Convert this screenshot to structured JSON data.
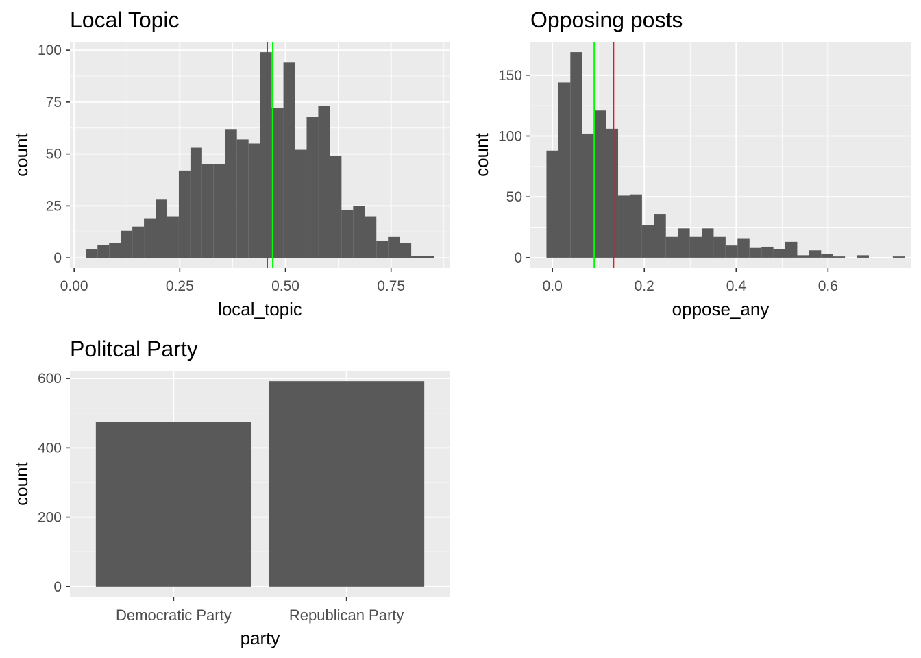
{
  "chart_data": [
    {
      "type": "bar",
      "title": "Local Topic",
      "xlabel": "local_topic",
      "ylabel": "count",
      "bin_width": 0.0275,
      "bins": [
        [
          0.0415,
          4
        ],
        [
          0.069,
          6
        ],
        [
          0.0965,
          7
        ],
        [
          0.124,
          13
        ],
        [
          0.1515,
          15
        ],
        [
          0.179,
          19
        ],
        [
          0.2065,
          28
        ],
        [
          0.234,
          20
        ],
        [
          0.2615,
          42
        ],
        [
          0.289,
          53
        ],
        [
          0.3165,
          45
        ],
        [
          0.344,
          45
        ],
        [
          0.3715,
          62
        ],
        [
          0.399,
          57
        ],
        [
          0.4265,
          55
        ],
        [
          0.454,
          99
        ],
        [
          0.4815,
          72
        ],
        [
          0.509,
          94
        ],
        [
          0.5365,
          52
        ],
        [
          0.564,
          68
        ],
        [
          0.5915,
          73
        ],
        [
          0.619,
          49
        ],
        [
          0.6465,
          23
        ],
        [
          0.674,
          25
        ],
        [
          0.7015,
          20
        ],
        [
          0.729,
          8
        ],
        [
          0.7565,
          10
        ],
        [
          0.784,
          7
        ],
        [
          0.8115,
          1
        ],
        [
          0.839,
          1
        ]
      ],
      "xlim": [
        -0.01,
        0.89
      ],
      "ylim": [
        -4.9,
        104.0
      ],
      "xticks": [
        0,
        0.25,
        0.5,
        0.75
      ],
      "xtick_labels": [
        "0.00",
        "0.25",
        "0.50",
        "0.75"
      ],
      "yticks": [
        0,
        25,
        50,
        75,
        100
      ],
      "ytick_labels": [
        "0",
        "25",
        "50",
        "75",
        "100"
      ],
      "vlines": [
        {
          "x": 0.457,
          "color": "#e41a1c"
        },
        {
          "x": 0.47,
          "color": "#00ff00"
        }
      ]
    },
    {
      "type": "bar",
      "title": "Opposing posts",
      "xlabel": "oppose_any",
      "ylabel": "count",
      "bin_width": 0.026,
      "bins": [
        [
          0.0,
          88
        ],
        [
          0.026,
          144
        ],
        [
          0.052,
          169
        ],
        [
          0.078,
          102
        ],
        [
          0.104,
          121
        ],
        [
          0.13,
          106
        ],
        [
          0.156,
          51
        ],
        [
          0.182,
          52
        ],
        [
          0.208,
          27
        ],
        [
          0.234,
          36
        ],
        [
          0.26,
          17
        ],
        [
          0.286,
          24
        ],
        [
          0.312,
          17
        ],
        [
          0.338,
          24
        ],
        [
          0.364,
          17
        ],
        [
          0.39,
          10
        ],
        [
          0.416,
          16
        ],
        [
          0.442,
          8
        ],
        [
          0.468,
          9
        ],
        [
          0.494,
          7
        ],
        [
          0.52,
          13
        ],
        [
          0.546,
          2
        ],
        [
          0.572,
          6
        ],
        [
          0.598,
          3
        ],
        [
          0.624,
          1
        ],
        [
          0.65,
          0
        ],
        [
          0.676,
          2
        ],
        [
          0.702,
          0
        ],
        [
          0.728,
          0
        ],
        [
          0.754,
          1
        ]
      ],
      "xlim": [
        -0.048,
        0.78
      ],
      "ylim": [
        -8.5,
        177.5
      ],
      "xticks": [
        0,
        0.2,
        0.4,
        0.6
      ],
      "xtick_labels": [
        "0.0",
        "0.2",
        "0.4",
        "0.6"
      ],
      "yticks": [
        0,
        50,
        100,
        150
      ],
      "ytick_labels": [
        "0",
        "50",
        "100",
        "150"
      ],
      "vlines": [
        {
          "x": 0.091,
          "color": "#00ff00"
        },
        {
          "x": 0.133,
          "color": "#e41a1c"
        }
      ]
    },
    {
      "type": "bar",
      "title": "Politcal Party",
      "xlabel": "party",
      "ylabel": "count",
      "categories": [
        "Democratic Party",
        "Republican Party"
      ],
      "values": [
        474,
        592
      ],
      "ylim": [
        -30,
        622
      ],
      "yticks": [
        0,
        200,
        400,
        600
      ],
      "ytick_labels": [
        "0",
        "200",
        "400",
        "600"
      ]
    }
  ],
  "colors": {
    "panel_bg": "#ebebeb",
    "grid_major": "#ffffff",
    "bar_fill": "#595959",
    "tick_text": "#4d4d4d",
    "tick_mark": "#333333"
  }
}
